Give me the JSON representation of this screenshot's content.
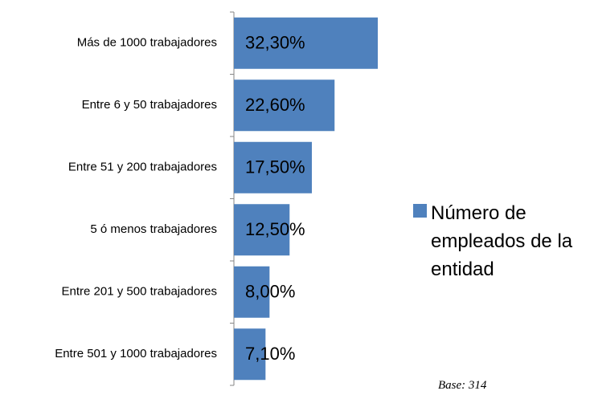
{
  "chart_data": {
    "type": "bar",
    "orientation": "horizontal",
    "categories": [
      "Más de 1000 trabajadores",
      "Entre 6 y 50 trabajadores",
      "Entre 51 y 200 trabajadores",
      "5 ó menos trabajadores",
      "Entre 201 y 500 trabajadores",
      "Entre 501 y 1000 trabajadores"
    ],
    "series": [
      {
        "name": "Número de empleados de la entidad",
        "color": "#4f81bd",
        "values": [
          32.3,
          22.6,
          17.5,
          12.5,
          8.0,
          7.1
        ],
        "value_labels": [
          "32,30%",
          "22,60%",
          "17,50%",
          "12,50%",
          "8,00%",
          "7,10%"
        ]
      }
    ],
    "legend": "right",
    "annotation": "Base: 314"
  }
}
